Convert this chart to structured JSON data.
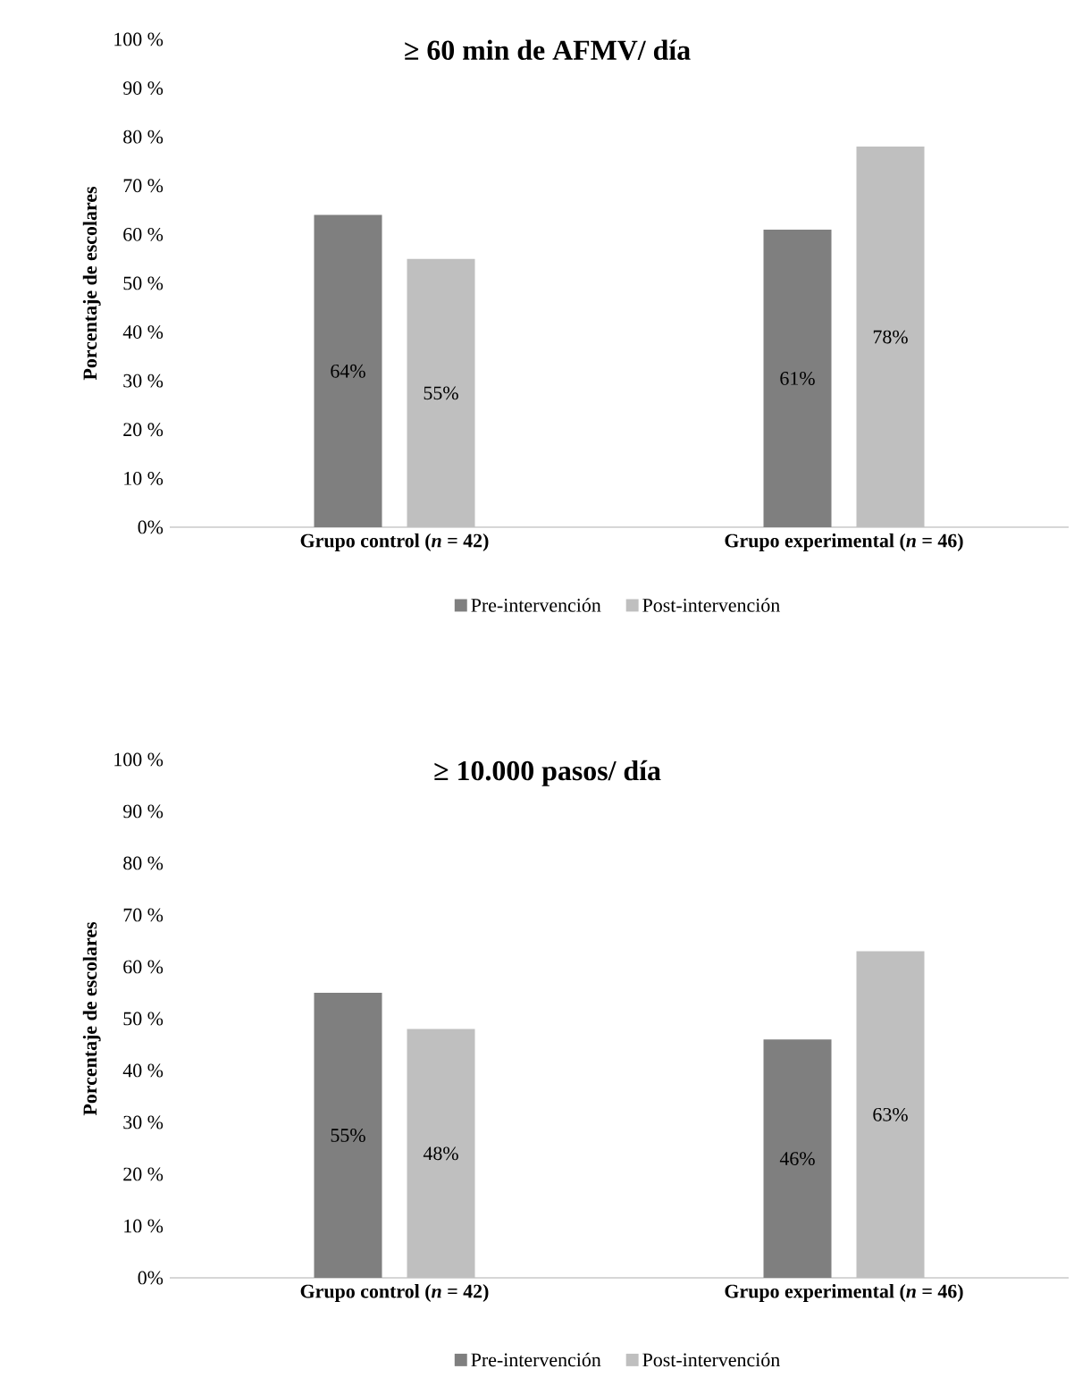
{
  "chart_data": [
    {
      "type": "bar",
      "title": "≥ 60 min de AFMV/ día",
      "ylabel": "Porcentaje de escolares",
      "categories": [
        "Grupo control (*n* = 42)",
        "Grupo experimental (*n* = 46)"
      ],
      "series": [
        {
          "name": "Pre-intervención",
          "color": "#7f7f7f",
          "values": [
            64,
            61
          ],
          "value_labels": [
            "64%",
            "61%"
          ]
        },
        {
          "name": "Post-intervención",
          "color": "#bfbfbf",
          "values": [
            55,
            78
          ],
          "value_labels": [
            "55%",
            "78%"
          ]
        }
      ],
      "ylim": [
        0,
        100
      ],
      "yticks": [
        {
          "value": 0,
          "label": "0%"
        },
        {
          "value": 10,
          "label": "10 %"
        },
        {
          "value": 20,
          "label": "20 %"
        },
        {
          "value": 30,
          "label": "30 %"
        },
        {
          "value": 40,
          "label": "40 %"
        },
        {
          "value": 50,
          "label": "50 %"
        },
        {
          "value": 60,
          "label": "60 %"
        },
        {
          "value": 70,
          "label": "70 %"
        },
        {
          "value": 80,
          "label": "80 %"
        },
        {
          "value": 90,
          "label": "90 %"
        },
        {
          "value": 100,
          "label": "100 %"
        }
      ],
      "legend": "bottom",
      "grid": false
    },
    {
      "type": "bar",
      "title": "≥ 10.000 pasos/ día",
      "ylabel": "Porcentaje de escolares",
      "categories": [
        "Grupo control  (*n* = 42)",
        "Grupo experimental (*n* = 46)"
      ],
      "series": [
        {
          "name": "Pre-intervención",
          "color": "#7f7f7f",
          "values": [
            55,
            46
          ],
          "value_labels": [
            "55%",
            "46%"
          ]
        },
        {
          "name": "Post-intervención",
          "color": "#bfbfbf",
          "values": [
            48,
            63
          ],
          "value_labels": [
            "48%",
            "63%"
          ]
        }
      ],
      "ylim": [
        0,
        100
      ],
      "yticks": [
        {
          "value": 0,
          "label": "0%"
        },
        {
          "value": 10,
          "label": "10 %"
        },
        {
          "value": 20,
          "label": "20 %"
        },
        {
          "value": 30,
          "label": "30 %"
        },
        {
          "value": 40,
          "label": "40 %"
        },
        {
          "value": 50,
          "label": "50 %"
        },
        {
          "value": 60,
          "label": "60 %"
        },
        {
          "value": 70,
          "label": "70 %"
        },
        {
          "value": 80,
          "label": "80 %"
        },
        {
          "value": 90,
          "label": "90 %"
        },
        {
          "value": 100,
          "label": "100 %"
        }
      ],
      "legend": "bottom",
      "grid": false
    }
  ]
}
